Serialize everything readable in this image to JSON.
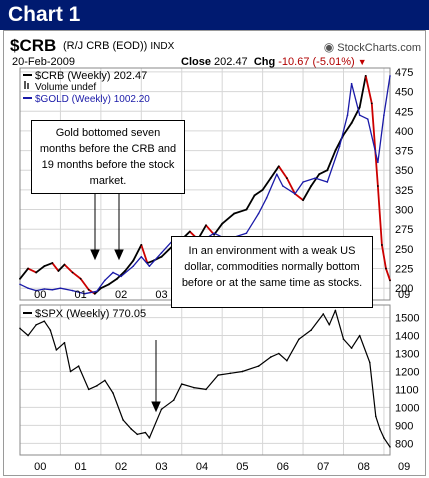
{
  "banner": {
    "title": "Chart 1"
  },
  "header": {
    "symbol": "$CRB",
    "description": "(R/J CRB (EOD))",
    "exchange": "INDX",
    "site": "StockCharts.com",
    "date": "20-Feb-2009",
    "close_label": "Close",
    "close_value": "202.47",
    "chg_label": "Chg",
    "chg_value": "-10.67 (-5.01%)"
  },
  "annotations": {
    "gold_bottom": "Gold bottomed seven months before the CRB and 19 months before the stock market.",
    "weak_dollar": "In an environment with a weak US dollar, commodities normally bottom before or at the same time as stocks."
  },
  "chart_data": [
    {
      "type": "line",
      "title": "$CRB (R/J CRB (EOD)) INDX",
      "legend": [
        "$CRB (Weekly) 202.47",
        "Volume undef",
        "$GOLD (Weekly) 1002.20"
      ],
      "legend_placement": "top-left",
      "grid": true,
      "x_tick_labels": [
        "00",
        "01",
        "02",
        "03",
        "04",
        "05",
        "06",
        "07",
        "08",
        "09"
      ],
      "yticks": [
        200,
        225,
        250,
        275,
        300,
        325,
        350,
        375,
        400,
        425,
        450,
        475
      ],
      "ylim": [
        185,
        480
      ],
      "colors": {
        "crb_up": "#000000",
        "crb_down": "#cc0000",
        "gold": "#1a1aa8"
      },
      "series": [
        {
          "name": "$CRB (Weekly) 202.47",
          "x": [
            2000.0,
            2000.2,
            2000.4,
            2000.6,
            2000.8,
            2000.95,
            2001.1,
            2001.3,
            2001.5,
            2001.7,
            2001.85,
            2002.0,
            2002.2,
            2002.4,
            2002.6,
            2002.8,
            2003.0,
            2003.15,
            2003.3,
            2003.5,
            2003.8,
            2004.0,
            2004.2,
            2004.4,
            2004.6,
            2004.8,
            2005.0,
            2005.3,
            2005.6,
            2005.8,
            2006.0,
            2006.2,
            2006.4,
            2006.6,
            2006.8,
            2007.0,
            2007.2,
            2007.4,
            2007.6,
            2007.8,
            2008.0,
            2008.2,
            2008.4,
            2008.55,
            2008.7,
            2008.85,
            2008.95,
            2009.05,
            2009.15
          ],
          "y": [
            212,
            225,
            220,
            228,
            232,
            222,
            230,
            220,
            212,
            198,
            193,
            200,
            205,
            212,
            222,
            235,
            255,
            232,
            235,
            240,
            255,
            262,
            272,
            262,
            280,
            268,
            282,
            295,
            300,
            318,
            325,
            340,
            355,
            340,
            320,
            312,
            330,
            345,
            350,
            375,
            395,
            410,
            430,
            470,
            435,
            330,
            255,
            225,
            210
          ]
        },
        {
          "name": "$GOLD (Weekly) 1002.20",
          "x": [
            2000.0,
            2000.2,
            2000.4,
            2000.6,
            2000.8,
            2001.0,
            2001.3,
            2001.6,
            2001.9,
            2002.1,
            2002.3,
            2002.5,
            2002.8,
            2003.0,
            2003.2,
            2003.5,
            2003.8,
            2004.0,
            2004.2,
            2004.5,
            2004.8,
            2005.0,
            2005.3,
            2005.6,
            2005.9,
            2006.1,
            2006.35,
            2006.5,
            2006.8,
            2007.0,
            2007.3,
            2007.6,
            2007.9,
            2008.1,
            2008.2,
            2008.4,
            2008.6,
            2008.85,
            2009.0,
            2009.15
          ],
          "y": [
            205,
            200,
            197,
            199,
            198,
            200,
            197,
            193,
            196,
            210,
            220,
            215,
            228,
            240,
            228,
            245,
            262,
            255,
            250,
            260,
            270,
            265,
            265,
            270,
            295,
            315,
            345,
            330,
            320,
            335,
            340,
            335,
            380,
            420,
            460,
            420,
            415,
            360,
            420,
            470
          ]
        }
      ]
    },
    {
      "type": "line",
      "legend": [
        "$SPX (Weekly) 770.05"
      ],
      "legend_placement": "top-left",
      "grid": true,
      "x_tick_labels": [
        "00",
        "01",
        "02",
        "03",
        "04",
        "05",
        "06",
        "07",
        "08",
        "09"
      ],
      "yticks": [
        800,
        900,
        1000,
        1100,
        1200,
        1300,
        1400,
        1500
      ],
      "ylim": [
        735,
        1570
      ],
      "series": [
        {
          "name": "$SPX (Weekly) 770.05",
          "x": [
            2000.0,
            2000.2,
            2000.4,
            2000.6,
            2000.75,
            2000.9,
            2001.1,
            2001.25,
            2001.45,
            2001.7,
            2001.9,
            2002.1,
            2002.3,
            2002.55,
            2002.75,
            2002.9,
            2003.1,
            2003.2,
            2003.5,
            2003.8,
            2004.0,
            2004.3,
            2004.6,
            2004.9,
            2005.2,
            2005.5,
            2005.9,
            2006.2,
            2006.4,
            2006.6,
            2006.9,
            2007.2,
            2007.5,
            2007.65,
            2007.8,
            2008.0,
            2008.2,
            2008.4,
            2008.65,
            2008.8,
            2008.9,
            2009.0,
            2009.15
          ],
          "y": [
            1440,
            1400,
            1460,
            1480,
            1430,
            1320,
            1360,
            1200,
            1230,
            1100,
            1120,
            1150,
            1080,
            930,
            880,
            850,
            860,
            830,
            990,
            1040,
            1130,
            1110,
            1100,
            1180,
            1190,
            1200,
            1230,
            1280,
            1300,
            1260,
            1380,
            1430,
            1520,
            1460,
            1540,
            1380,
            1330,
            1400,
            1250,
            950,
            880,
            830,
            780
          ]
        }
      ]
    }
  ]
}
